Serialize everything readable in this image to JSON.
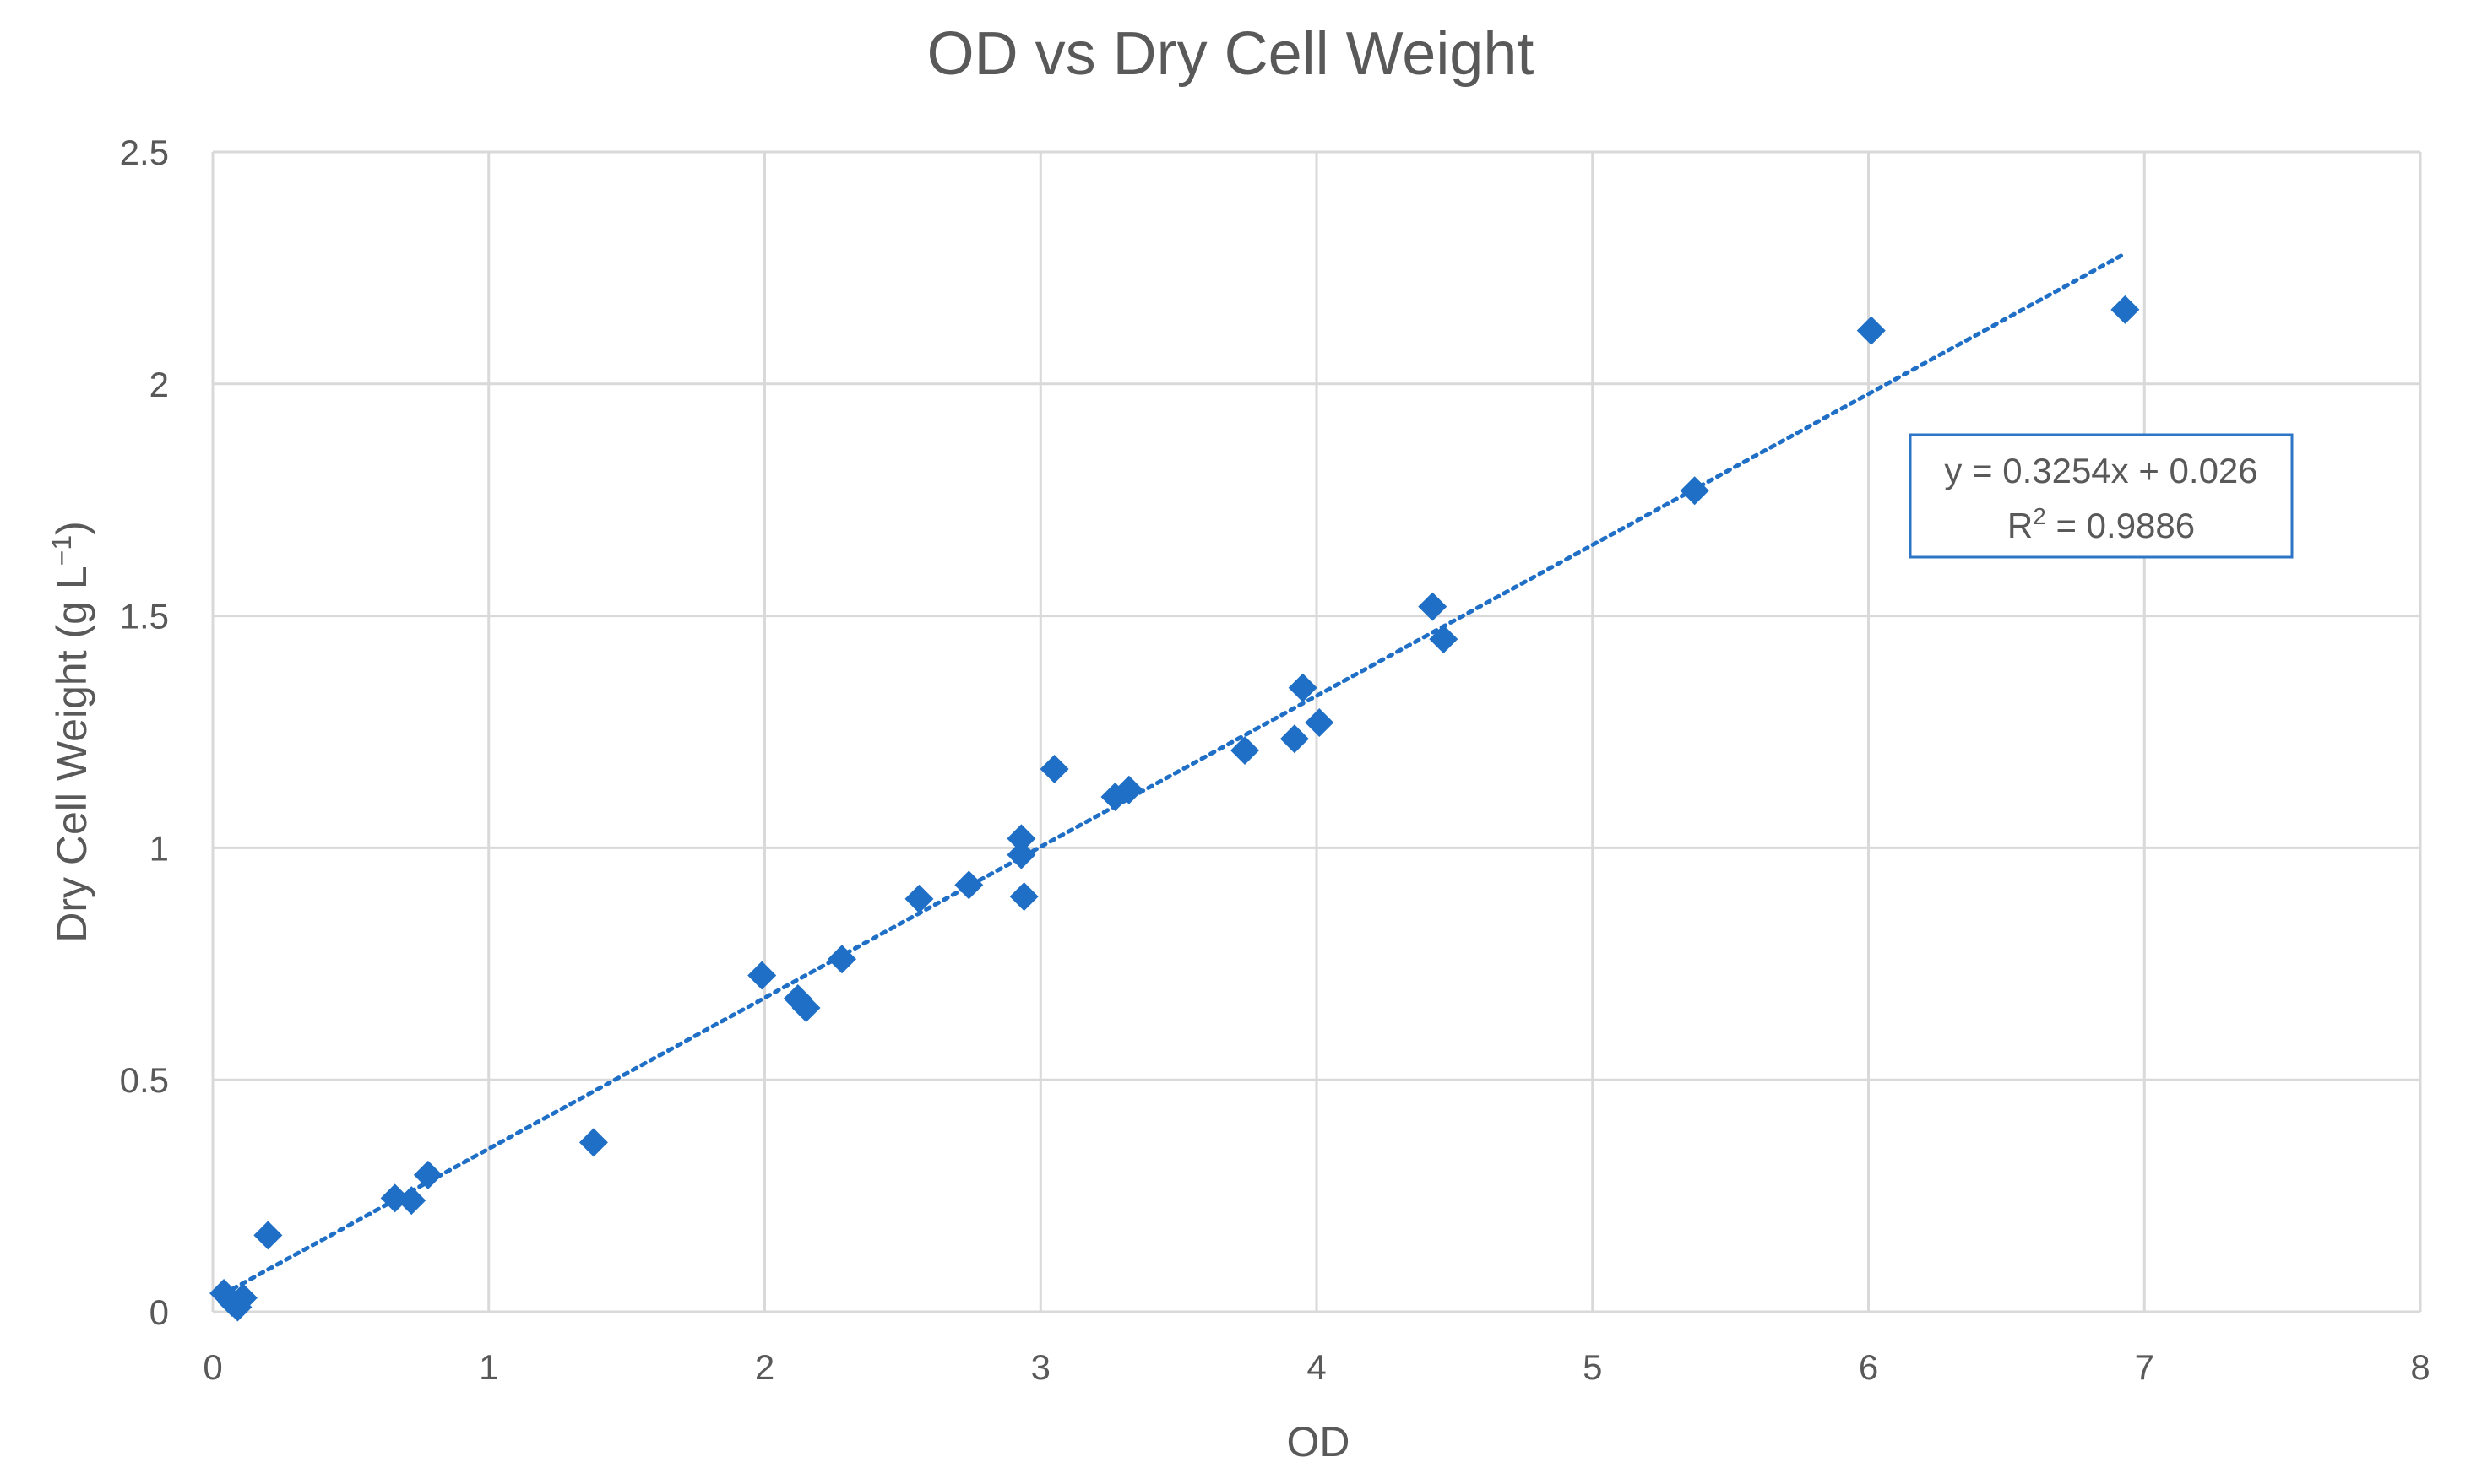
{
  "chart_data": {
    "type": "scatter",
    "title": "OD vs Dry Cell Weight",
    "xlabel": "OD",
    "ylabel": "Dry Cell Weight (g L",
    "ylabel_sup": "−1",
    "ylabel_close": ")",
    "xlim": [
      0,
      8
    ],
    "ylim": [
      0,
      2.5
    ],
    "x_ticks": [
      "0",
      "1",
      "2",
      "3",
      "4",
      "5",
      "6",
      "7",
      "8"
    ],
    "y_ticks": [
      "0",
      "0.5",
      "1",
      "1.5",
      "2",
      "2.5"
    ],
    "x_tick_values": [
      0,
      1,
      2,
      3,
      4,
      5,
      6,
      7,
      8
    ],
    "y_tick_values": [
      0,
      0.5,
      1,
      1.5,
      2,
      2.5
    ],
    "grid": true,
    "marker": "diamond",
    "color": "#1f6fc6",
    "series": [
      {
        "name": "Dry Cell Weight",
        "points": [
          {
            "x": 0.04,
            "y": 0.04
          },
          {
            "x": 0.07,
            "y": 0.02
          },
          {
            "x": 0.09,
            "y": 0.01
          },
          {
            "x": 0.11,
            "y": 0.03
          },
          {
            "x": 0.2,
            "y": 0.165
          },
          {
            "x": 0.66,
            "y": 0.245
          },
          {
            "x": 0.72,
            "y": 0.24
          },
          {
            "x": 0.78,
            "y": 0.295
          },
          {
            "x": 1.38,
            "y": 0.365
          },
          {
            "x": 1.99,
            "y": 0.725
          },
          {
            "x": 2.12,
            "y": 0.675
          },
          {
            "x": 2.15,
            "y": 0.655
          },
          {
            "x": 2.28,
            "y": 0.76
          },
          {
            "x": 2.56,
            "y": 0.89
          },
          {
            "x": 2.74,
            "y": 0.92
          },
          {
            "x": 2.93,
            "y": 1.02
          },
          {
            "x": 2.93,
            "y": 0.985
          },
          {
            "x": 2.94,
            "y": 0.895
          },
          {
            "x": 3.05,
            "y": 1.17
          },
          {
            "x": 3.27,
            "y": 1.11
          },
          {
            "x": 3.32,
            "y": 1.125
          },
          {
            "x": 3.74,
            "y": 1.21
          },
          {
            "x": 3.92,
            "y": 1.235
          },
          {
            "x": 3.95,
            "y": 1.345
          },
          {
            "x": 4.01,
            "y": 1.27
          },
          {
            "x": 4.42,
            "y": 1.52
          },
          {
            "x": 4.46,
            "y": 1.45
          },
          {
            "x": 5.37,
            "y": 1.77
          },
          {
            "x": 6.01,
            "y": 2.115
          },
          {
            "x": 6.93,
            "y": 2.16
          }
        ]
      }
    ],
    "trendline": {
      "type": "linear",
      "slope": 0.3254,
      "intercept": 0.026,
      "x_range": [
        0.04,
        6.93
      ],
      "equation": "y = 0.3254x + 0.026",
      "r2_label": "R",
      "r2_sup": "2",
      "r2_value": " = 0.9886"
    }
  }
}
